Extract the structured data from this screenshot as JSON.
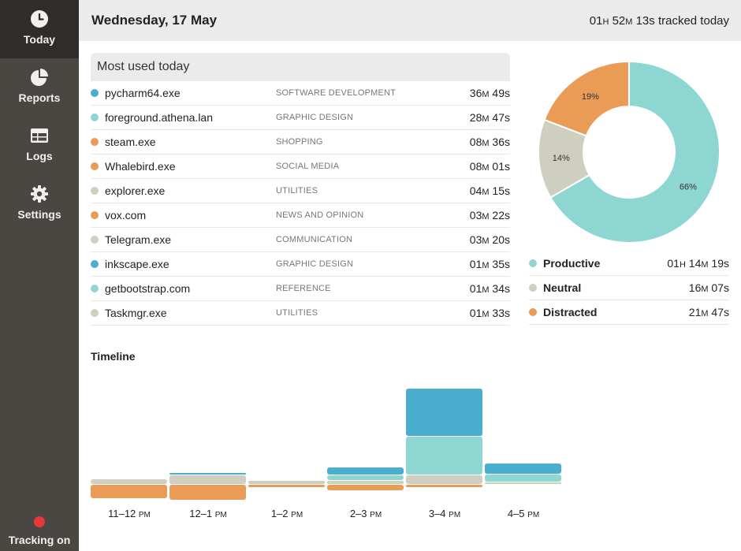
{
  "colors": {
    "productive": "#8dd6d2",
    "neutral": "#cfcfc0",
    "distracted": "#ea9b56",
    "dark_productive": "#4aafcf"
  },
  "sidebar": {
    "items": [
      {
        "label": "Today",
        "icon": "clock-icon",
        "active": true
      },
      {
        "label": "Reports",
        "icon": "pie-chart-icon",
        "active": false
      },
      {
        "label": "Logs",
        "icon": "table-icon",
        "active": false
      },
      {
        "label": "Settings",
        "icon": "gear-icon",
        "active": false
      }
    ],
    "tracking_label": "Tracking on"
  },
  "header": {
    "date": "Wednesday, 17 May",
    "tracked": {
      "h": "01",
      "m": "52",
      "s": "13",
      "suffix": " tracked today"
    }
  },
  "most_used": {
    "title": "Most used today",
    "rows": [
      {
        "name": "pycharm64.exe",
        "category": "SOFTWARE DEVELOPMENT",
        "m": "36",
        "s": "49",
        "color": "#4aafcf"
      },
      {
        "name": "foreground.athena.lan",
        "category": "GRAPHIC DESIGN",
        "m": "28",
        "s": "47",
        "color": "#8dd6d2"
      },
      {
        "name": "steam.exe",
        "category": "SHOPPING",
        "m": "08",
        "s": "36",
        "color": "#ea9b56"
      },
      {
        "name": "Whalebird.exe",
        "category": "SOCIAL MEDIA",
        "m": "08",
        "s": "01",
        "color": "#ea9b56"
      },
      {
        "name": "explorer.exe",
        "category": "UTILITIES",
        "m": "04",
        "s": "15",
        "color": "#cfcfc0"
      },
      {
        "name": "vox.com",
        "category": "NEWS AND OPINION",
        "m": "03",
        "s": "22",
        "color": "#ea9b56"
      },
      {
        "name": "Telegram.exe",
        "category": "COMMUNICATION",
        "m": "03",
        "s": "20",
        "color": "#cfcfc0"
      },
      {
        "name": "inkscape.exe",
        "category": "GRAPHIC DESIGN",
        "m": "01",
        "s": "35",
        "color": "#4aafcf"
      },
      {
        "name": "getbootstrap.com",
        "category": "REFERENCE",
        "m": "01",
        "s": "34",
        "color": "#8dd6d2"
      },
      {
        "name": "Taskmgr.exe",
        "category": "UTILITIES",
        "m": "01",
        "s": "33",
        "color": "#cfcfc0"
      }
    ]
  },
  "breakdown": {
    "slices": [
      {
        "name": "Productive",
        "percent": 66,
        "label": "66%",
        "color": "#8dd6d2",
        "h": "01",
        "m": "14",
        "s": "19"
      },
      {
        "name": "Neutral",
        "percent": 14,
        "label": "14%",
        "color": "#cfcfc0",
        "h": null,
        "m": "16",
        "s": "07"
      },
      {
        "name": "Distracted",
        "percent": 19,
        "label": "19%",
        "color": "#ea9b56",
        "h": null,
        "m": "21",
        "s": "47"
      }
    ]
  },
  "timeline": {
    "title": "Timeline",
    "max_minutes": 60,
    "hours": [
      {
        "label": "11–12",
        "ampm": "PM",
        "distracted": 7,
        "neutral": 3,
        "productive": 0,
        "dark": 0
      },
      {
        "label": "12–1",
        "ampm": "PM",
        "distracted": 8,
        "neutral": 5,
        "productive": 0,
        "dark": 1
      },
      {
        "label": "1–2",
        "ampm": "PM",
        "distracted": 1,
        "neutral": 2,
        "productive": 0,
        "dark": 0
      },
      {
        "label": "2–3",
        "ampm": "PM",
        "distracted": 3,
        "neutral": 2,
        "productive": 3,
        "dark": 4
      },
      {
        "label": "3–4",
        "ampm": "PM",
        "distracted": 1,
        "neutral": 5,
        "productive": 20,
        "dark": 25
      },
      {
        "label": "4–5",
        "ampm": "PM",
        "distracted": 0,
        "neutral": 1,
        "productive": 4,
        "dark": 6
      }
    ]
  }
}
